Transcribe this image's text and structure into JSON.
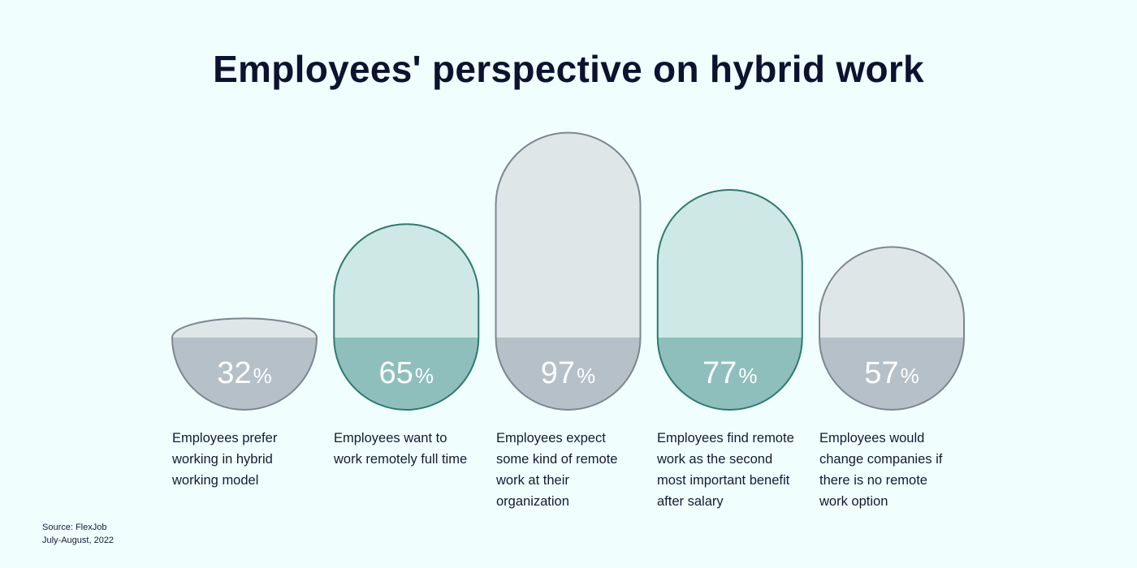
{
  "title": "Employees' perspective on hybrid work",
  "chart_data": {
    "type": "bar",
    "title": "Employees' perspective on hybrid work",
    "percent_symbol": "%",
    "ylim": [
      0,
      100
    ],
    "categories": [
      "Employees prefer working in hybrid working model",
      "Employees want to work remotely full time",
      "Employees expect some kind of remote work at their organization",
      "Employees find remote work as the second most important benefit after salary",
      "Employees would change companies if there is no remote work option"
    ],
    "values": [
      32,
      65,
      97,
      77,
      57
    ],
    "value_labels": [
      "32",
      "65",
      "97",
      "77",
      "57"
    ],
    "captions": [
      [
        "Employees prefer",
        "working in hybrid",
        "working model"
      ],
      [
        "Employees want to",
        "work remotely full time"
      ],
      [
        "Employees expect",
        "some kind of remote",
        "work at their",
        "organization"
      ],
      [
        "Employees find remote",
        "work as the second",
        "most important benefit",
        "after salary"
      ],
      [
        "Employees would",
        "change companies if",
        "there is no remote",
        "work option"
      ]
    ],
    "styles": [
      "gray",
      "teal",
      "gray",
      "teal",
      "gray"
    ]
  },
  "colors": {
    "background": "#f0fffe",
    "gray_top": "#dfe6e8",
    "gray_bottom": "#b6c0c8",
    "gray_stroke": "#7d868f",
    "teal_top": "#cde8e5",
    "teal_bottom": "#8ebfbc",
    "teal_stroke": "#2d7a6e"
  },
  "source": {
    "line1": "Source: FlexJob",
    "line2": "July-August, 2022"
  }
}
